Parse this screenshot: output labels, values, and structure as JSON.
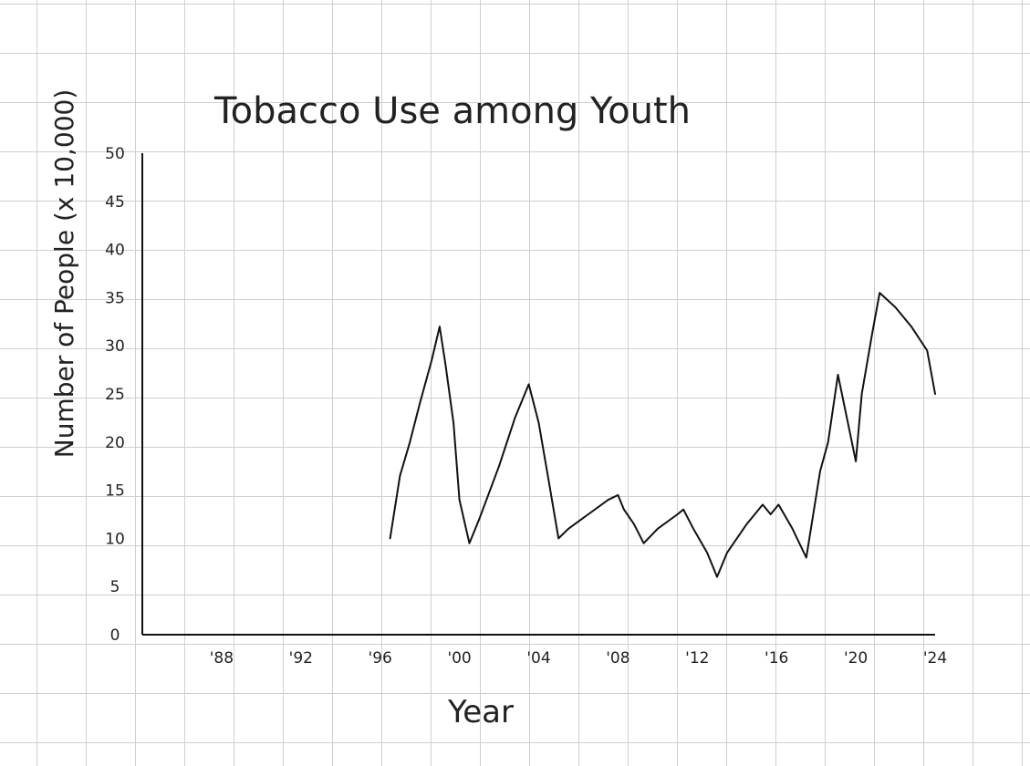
{
  "chart_data": {
    "type": "line",
    "title": "Tobacco Use among Youth",
    "xlabel": "Year",
    "ylabel": "Number of People (x 10,000)",
    "xlim": [
      1984,
      2024
    ],
    "ylim": [
      0,
      50
    ],
    "grid": true,
    "x_ticks": [
      {
        "value": 1988,
        "label": "'88"
      },
      {
        "value": 1992,
        "label": "'92"
      },
      {
        "value": 1996,
        "label": "'96"
      },
      {
        "value": 2000,
        "label": "'00"
      },
      {
        "value": 2004,
        "label": "'04"
      },
      {
        "value": 2008,
        "label": "'08"
      },
      {
        "value": 2012,
        "label": "'12"
      },
      {
        "value": 2016,
        "label": "'16"
      },
      {
        "value": 2020,
        "label": "'20"
      },
      {
        "value": 2024,
        "label": "'24"
      }
    ],
    "y_ticks": [
      0,
      5,
      10,
      15,
      20,
      25,
      30,
      35,
      40,
      45,
      50
    ],
    "series": [
      {
        "color": "#111111",
        "points": [
          [
            1996.5,
            10
          ],
          [
            1997.0,
            16.5
          ],
          [
            1997.5,
            20
          ],
          [
            1998.0,
            24
          ],
          [
            1998.6,
            28.5
          ],
          [
            1999.0,
            32
          ],
          [
            1999.3,
            28
          ],
          [
            1999.7,
            22
          ],
          [
            2000.0,
            14
          ],
          [
            2000.5,
            9.5
          ],
          [
            2001.0,
            12
          ],
          [
            2002.0,
            17.5
          ],
          [
            2002.8,
            22.5
          ],
          [
            2003.5,
            26
          ],
          [
            2004.0,
            22
          ],
          [
            2004.5,
            16
          ],
          [
            2005.0,
            10
          ],
          [
            2005.5,
            11
          ],
          [
            2006.5,
            12.5
          ],
          [
            2007.5,
            14
          ],
          [
            2008.0,
            14.5
          ],
          [
            2008.3,
            13
          ],
          [
            2008.8,
            11.5
          ],
          [
            2009.3,
            9.5
          ],
          [
            2010.0,
            11
          ],
          [
            2011.0,
            12.5
          ],
          [
            2011.3,
            13
          ],
          [
            2011.8,
            11
          ],
          [
            2012.5,
            8.5
          ],
          [
            2013.0,
            6
          ],
          [
            2013.5,
            8.5
          ],
          [
            2014.5,
            11.5
          ],
          [
            2015.3,
            13.5
          ],
          [
            2015.7,
            12.5
          ],
          [
            2016.1,
            13.5
          ],
          [
            2016.8,
            11
          ],
          [
            2017.5,
            8
          ],
          [
            2018.2,
            17
          ],
          [
            2018.6,
            20
          ],
          [
            2019.1,
            27
          ],
          [
            2019.6,
            22
          ],
          [
            2020.0,
            18
          ],
          [
            2020.3,
            25
          ],
          [
            2020.8,
            31
          ],
          [
            2021.2,
            35.5
          ],
          [
            2022.0,
            34
          ],
          [
            2022.8,
            32
          ],
          [
            2023.6,
            29.5
          ],
          [
            2024.0,
            25
          ]
        ]
      }
    ]
  }
}
